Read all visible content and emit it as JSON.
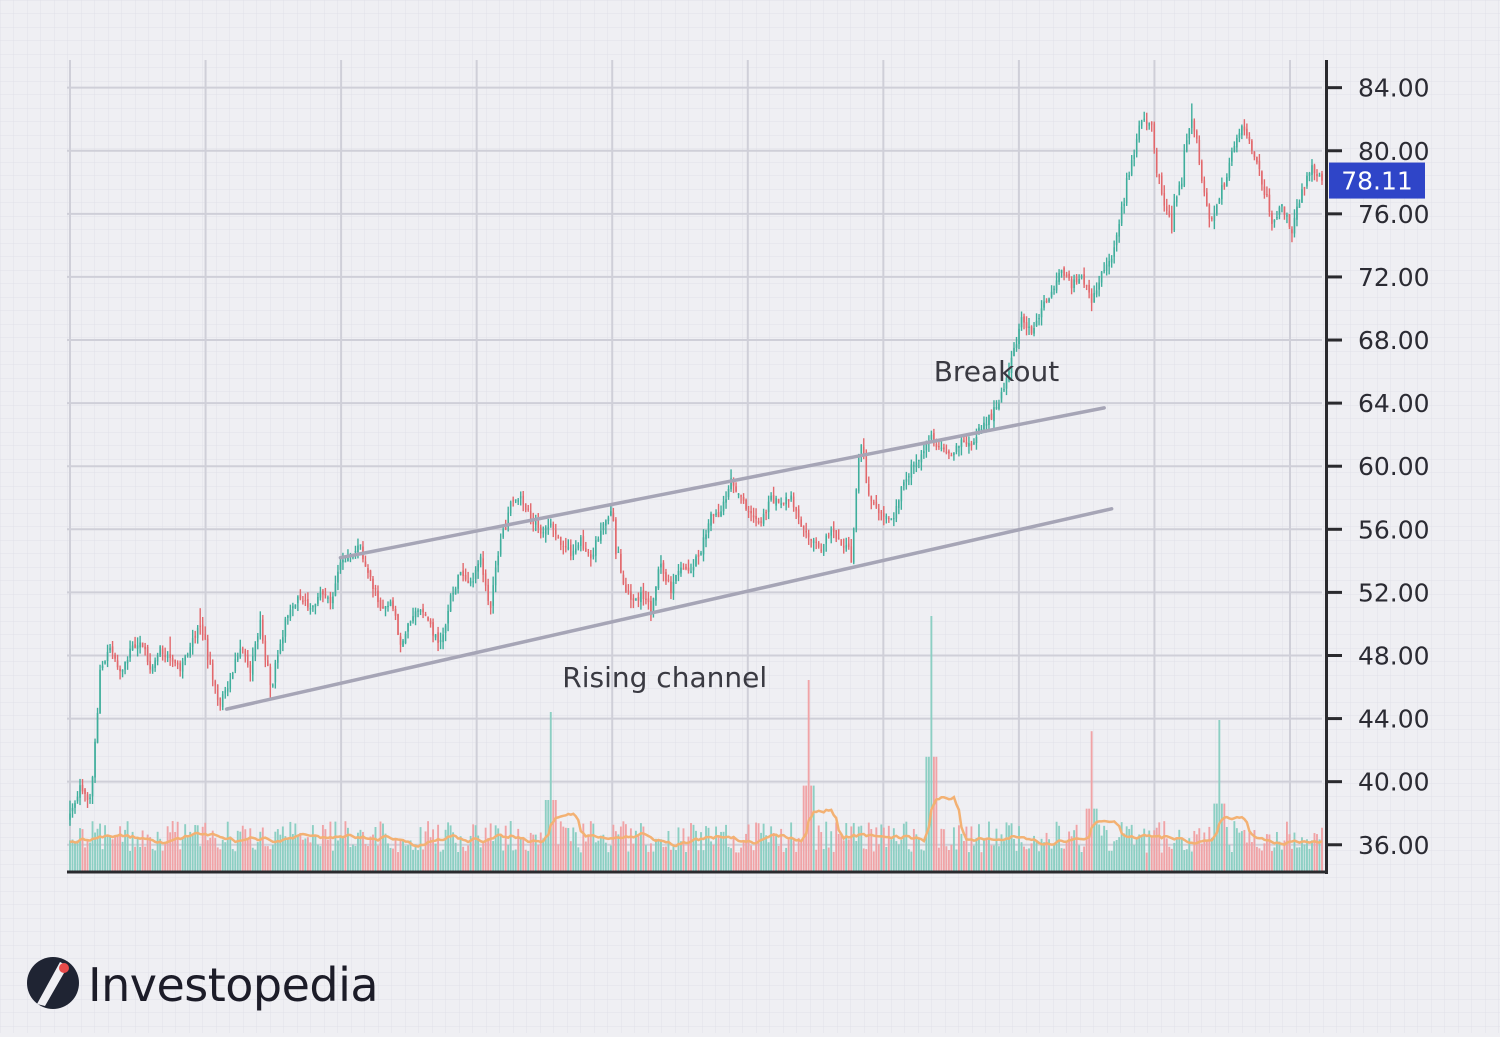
{
  "chart_data": {
    "type": "candlestick",
    "y_axis": {
      "position": "right",
      "ylim": [
        34.4,
        85.5
      ],
      "ticks": [
        84,
        80,
        76,
        72,
        68,
        64,
        60,
        56,
        52,
        48,
        44,
        40,
        36
      ],
      "tick_labels": [
        "84.00",
        "80.00",
        "76.00",
        "72.00",
        "68.00",
        "64.00",
        "60.00",
        "56.00",
        "52.00",
        "48.00",
        "44.00",
        "40.00",
        "36.00"
      ]
    },
    "grid": true,
    "colors": {
      "up": "#3fae9c",
      "down": "#e2686c",
      "volume_up": "#8ccfc3",
      "volume_down": "#f0a3a6",
      "volume_ma": "#f3b173",
      "channel": "#a6a5b6",
      "price_tag": "#2f45c8"
    },
    "anchors": [
      {
        "close": 37.8,
        "high": 38.8,
        "low": 37.2
      },
      {
        "close": 39.8
      },
      {
        "close": 38.5
      },
      {
        "close": 47.0
      },
      {
        "close": 48.5
      },
      {
        "close": 47.0
      },
      {
        "close": 48.2
      },
      {
        "close": 49.0
      },
      {
        "close": 47.2
      },
      {
        "close": 48.4
      },
      {
        "close": 47.8,
        "high": 49.2
      },
      {
        "close": 47.0
      },
      {
        "close": 48.5
      },
      {
        "close": 50.0,
        "high": 51.0
      },
      {
        "close": 47.2
      },
      {
        "close": 45.0,
        "low": 44.5
      },
      {
        "close": 46.5
      },
      {
        "close": 48.5,
        "high": 49.0
      },
      {
        "close": 47.0
      },
      {
        "close": 49.6,
        "high": 50.8
      },
      {
        "close": 45.8,
        "low": 45.2
      },
      {
        "close": 49.0
      },
      {
        "close": 51.0
      },
      {
        "close": 51.8,
        "high": 52.2
      },
      {
        "close": 50.8
      },
      {
        "close": 52.2
      },
      {
        "close": 51.2
      },
      {
        "close": 53.8
      },
      {
        "close": 54.5
      },
      {
        "close": 54.8,
        "high": 55.0
      },
      {
        "close": 53.0
      },
      {
        "close": 50.8
      },
      {
        "close": 51.5
      },
      {
        "close": 48.8,
        "low": 48.2
      },
      {
        "close": 50.2
      },
      {
        "close": 51.0
      },
      {
        "close": 49.8
      },
      {
        "close": 48.6,
        "low": 48.4
      },
      {
        "close": 51.5
      },
      {
        "close": 53.5
      },
      {
        "close": 52.5
      },
      {
        "close": 54.0
      },
      {
        "close": 51.0,
        "low": 50.6
      },
      {
        "close": 55.0
      },
      {
        "close": 57.5
      },
      {
        "close": 58.0,
        "high": 58.4
      },
      {
        "close": 56.8
      },
      {
        "close": 55.8
      },
      {
        "close": 56.5
      },
      {
        "close": 55.0
      },
      {
        "close": 54.5
      },
      {
        "close": 55.3
      },
      {
        "close": 54.0
      },
      {
        "close": 56.0
      },
      {
        "close": 57.2,
        "high": 57.6
      },
      {
        "close": 53.0
      },
      {
        "close": 51.5,
        "low": 51.0
      },
      {
        "close": 51.8
      },
      {
        "close": 51.0
      },
      {
        "close": 54.0
      },
      {
        "close": 52.0
      },
      {
        "close": 53.8
      },
      {
        "close": 53.2
      },
      {
        "close": 54.8
      },
      {
        "close": 56.8
      },
      {
        "close": 57.0
      },
      {
        "close": 59.0,
        "high": 59.8
      },
      {
        "close": 58.0
      },
      {
        "close": 57.0
      },
      {
        "close": 56.5
      },
      {
        "close": 58.0
      },
      {
        "close": 57.5
      },
      {
        "close": 58.2
      },
      {
        "close": 56.0
      },
      {
        "close": 55.2
      },
      {
        "close": 54.8,
        "low": 54.5
      },
      {
        "close": 56.0
      },
      {
        "close": 55.0
      },
      {
        "close": 54.8,
        "low": 54.3
      },
      {
        "close": 61.0,
        "high": 61.4
      },
      {
        "close": 57.8
      },
      {
        "close": 57.0
      },
      {
        "close": 56.5
      },
      {
        "close": 58.5
      },
      {
        "close": 60.0
      },
      {
        "close": 60.8
      },
      {
        "close": 61.8
      },
      {
        "close": 61.0
      },
      {
        "close": 60.8
      },
      {
        "close": 61.5
      },
      {
        "close": 61.3
      },
      {
        "close": 62.5
      },
      {
        "close": 63.2,
        "high": 63.6
      },
      {
        "close": 64.5,
        "low": 64.3
      },
      {
        "close": 66.5
      },
      {
        "close": 69.5
      },
      {
        "close": 68.5
      },
      {
        "close": 70.0
      },
      {
        "close": 71.0
      },
      {
        "close": 72.5
      },
      {
        "close": 71.5
      },
      {
        "close": 72.0
      },
      {
        "close": 70.5
      },
      {
        "close": 72.2
      },
      {
        "close": 73.5
      },
      {
        "close": 76.0
      },
      {
        "close": 79.5
      },
      {
        "close": 82.0
      },
      {
        "close": 81.5
      },
      {
        "close": 77.0
      },
      {
        "close": 75.5
      },
      {
        "close": 78.5
      },
      {
        "close": 82.5,
        "high": 83.0
      },
      {
        "close": 78.0
      },
      {
        "close": 75.5
      },
      {
        "close": 77.5
      },
      {
        "close": 80.0
      },
      {
        "close": 81.5
      },
      {
        "close": 80.0
      },
      {
        "close": 78.0
      },
      {
        "close": 75.5
      },
      {
        "close": 76.5
      },
      {
        "close": 75.0,
        "low": 74.2
      },
      {
        "close": 77.5
      },
      {
        "close": 79.0
      },
      {
        "close": 78.11
      }
    ],
    "volume": {
      "base_level": 0.22,
      "spikes": [
        {
          "bar_fraction": 0.383,
          "level": 1.0
        },
        {
          "bar_fraction": 0.59,
          "level": 1.2
        },
        {
          "bar_fraction": 0.688,
          "level": 1.6
        },
        {
          "bar_fraction": 0.815,
          "level": 0.88
        },
        {
          "bar_fraction": 0.918,
          "level": 0.95
        }
      ]
    },
    "last_price": {
      "value": 78.11,
      "label": "78.11"
    },
    "channel_lines": [
      {
        "name": "upper",
        "from": {
          "bar_fraction": 0.216,
          "price": 54.2
        },
        "to": {
          "bar_fraction": 0.826,
          "price": 63.7
        }
      },
      {
        "name": "lower",
        "from": {
          "bar_fraction": 0.125,
          "price": 44.6
        },
        "to": {
          "bar_fraction": 0.832,
          "price": 57.3
        }
      }
    ],
    "annotations": [
      {
        "name": "breakout",
        "text": "Breakout",
        "bar_fraction": 0.74,
        "price": 65.4
      },
      {
        "name": "rising-channel",
        "text": "Rising channel",
        "bar_fraction": 0.475,
        "price": 46.0
      }
    ]
  },
  "brand": {
    "name": "Investopedia",
    "logo_icon": "investopedia-i-icon"
  }
}
